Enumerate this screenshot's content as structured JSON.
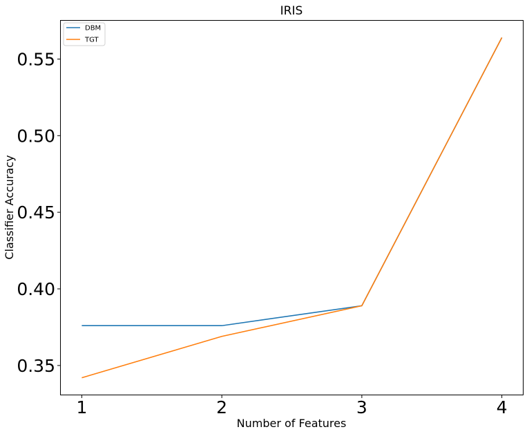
{
  "chart_data": {
    "type": "line",
    "title": "IRIS",
    "xlabel": "Number of Features",
    "ylabel": "Classifier Accuracy",
    "x": [
      1,
      2,
      3,
      4
    ],
    "xticks": [
      1,
      2,
      3,
      4
    ],
    "xtick_labels": [
      "1",
      "2",
      "3",
      "4"
    ],
    "xlim": [
      0.85,
      4.15
    ],
    "yticks": [
      0.35,
      0.4,
      0.45,
      0.5,
      0.55
    ],
    "ytick_labels": [
      "0.35",
      "0.40",
      "0.45",
      "0.50",
      "0.55"
    ],
    "ylim": [
      0.331,
      0.575
    ],
    "grid": false,
    "legend_position": "top-left",
    "series": [
      {
        "name": "DBM",
        "color": "#1f77b4",
        "values": [
          0.376,
          0.376,
          0.389,
          0.564
        ]
      },
      {
        "name": "TGT",
        "color": "#ff7f0e",
        "values": [
          0.342,
          0.369,
          0.389,
          0.564
        ]
      }
    ]
  }
}
